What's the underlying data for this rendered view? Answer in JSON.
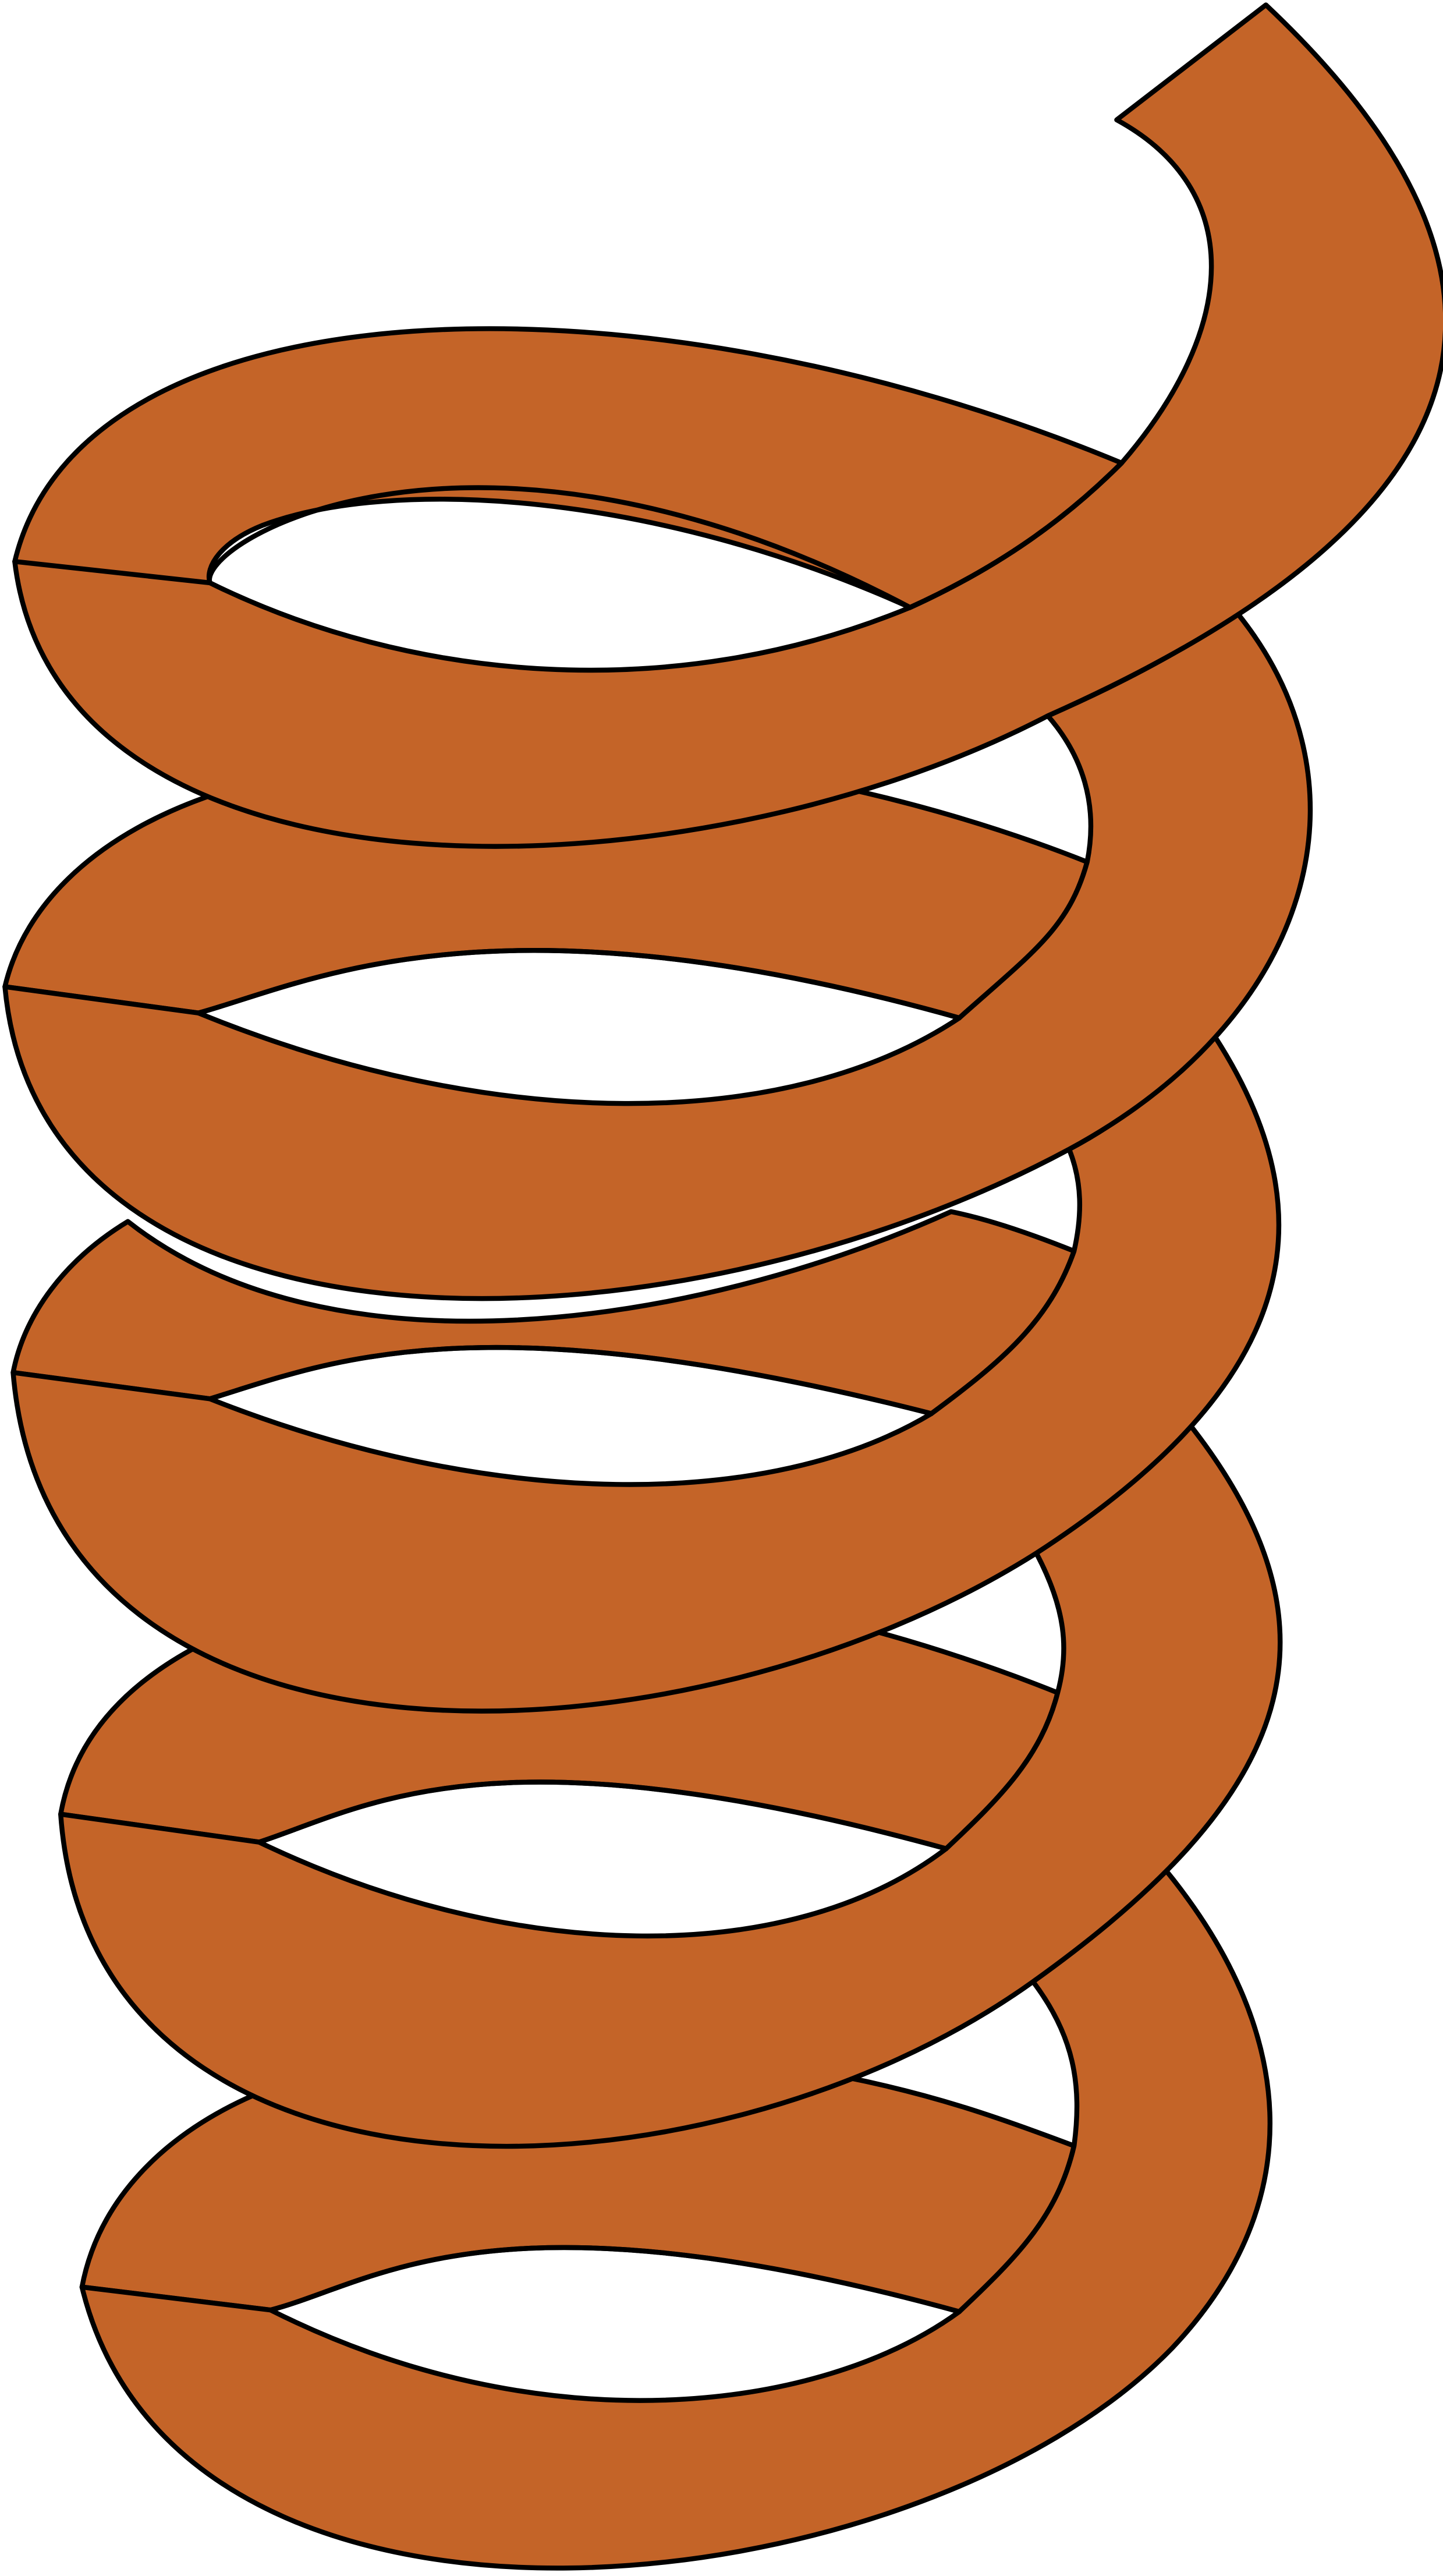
{
  "illustration": {
    "subject": "coil-spring",
    "coil_count": 5,
    "colors": {
      "background": "#ffffff",
      "coil_fill": "#c46428",
      "outline": "#000000"
    }
  }
}
